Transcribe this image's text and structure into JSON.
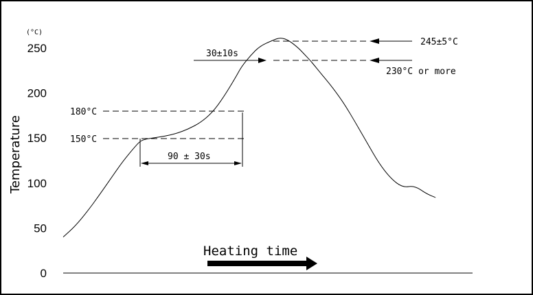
{
  "chart_data": {
    "type": "line",
    "title": "",
    "xlabel": "Heating time",
    "ylabel": "Temperature",
    "y_unit": "(°C)",
    "ylim": [
      0,
      265
    ],
    "y_ticks": [
      0,
      50,
      100,
      150,
      200,
      250
    ],
    "x_ticks": [],
    "grid": false,
    "series": [
      {
        "values_note": "",
        "x": [
          0,
          4,
          8,
          12,
          16,
          20,
          24,
          26,
          28,
          30,
          34,
          38,
          42,
          46,
          50,
          54,
          58,
          60,
          63,
          66,
          70,
          73,
          76,
          79,
          81,
          83,
          84,
          86,
          88,
          90,
          94,
          98,
          102,
          106,
          110,
          114,
          118,
          122,
          125
        ],
        "y": [
          40,
          52,
          68,
          86,
          105,
          124,
          140,
          147,
          149,
          150,
          152,
          155,
          160,
          167,
          178,
          196,
          218,
          230,
          242,
          252,
          258,
          262,
          258,
          250,
          243,
          236,
          232,
          224,
          216,
          208,
          190,
          168,
          145,
          122,
          105,
          95,
          97,
          88,
          84
        ]
      }
    ],
    "annotations": {
      "peak": "245±5°C",
      "threshold": "230°C or more",
      "peak_time": "30±10s",
      "preheat_high": "180°C",
      "preheat_low": "150°C",
      "preheat_time": "90 ± 30s"
    }
  }
}
